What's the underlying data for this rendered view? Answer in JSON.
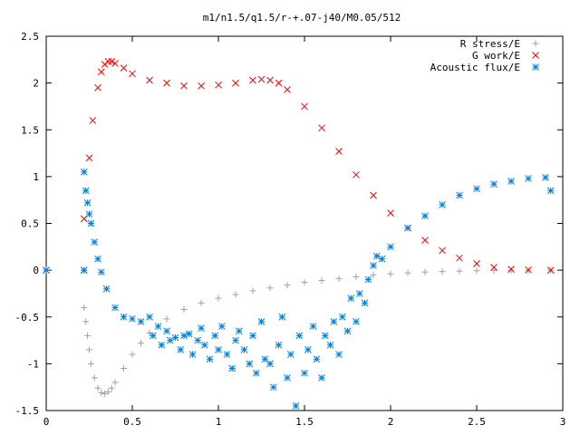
{
  "chart_data": {
    "type": "scatter",
    "title": "m1/n1.5/q1.5/r-+.07-j40/M0.05/512",
    "xlabel": "",
    "ylabel": "",
    "xlim": [
      0,
      3
    ],
    "ylim": [
      -1.5,
      2.5
    ],
    "x_ticks": [
      0,
      0.5,
      1,
      1.5,
      2,
      2.5,
      3
    ],
    "x_tick_labels": [
      "0",
      "0.5",
      "1",
      "1.5",
      "2",
      "2.5",
      "3"
    ],
    "y_ticks": [
      -1.5,
      -1,
      -0.5,
      0,
      0.5,
      1,
      1.5,
      2,
      2.5
    ],
    "y_tick_labels": [
      "-1.5",
      "-1",
      "-0.5",
      "0",
      "0.5",
      "1",
      "1.5",
      "2",
      "2.5"
    ],
    "grid": false,
    "legend_position": "top-right",
    "series": [
      {
        "name": "R stress/E",
        "marker": "+",
        "color": "#a0a0a0",
        "x": [
          0,
          0.22,
          0.22,
          0.23,
          0.24,
          0.25,
          0.26,
          0.28,
          0.3,
          0.32,
          0.34,
          0.36,
          0.38,
          0.4,
          0.45,
          0.5,
          0.55,
          0.6,
          0.7,
          0.8,
          0.9,
          1.0,
          1.1,
          1.2,
          1.3,
          1.4,
          1.5,
          1.6,
          1.7,
          1.8,
          1.9,
          2.0,
          2.1,
          2.2,
          2.3,
          2.4,
          2.5,
          2.6,
          2.7,
          2.8,
          2.93
        ],
        "y": [
          0,
          0,
          -0.4,
          -0.55,
          -0.7,
          -0.85,
          -1.0,
          -1.15,
          -1.26,
          -1.31,
          -1.32,
          -1.3,
          -1.26,
          -1.2,
          -1.05,
          -0.9,
          -0.78,
          -0.67,
          -0.52,
          -0.42,
          -0.35,
          -0.3,
          -0.26,
          -0.22,
          -0.19,
          -0.16,
          -0.13,
          -0.11,
          -0.09,
          -0.07,
          -0.05,
          -0.04,
          -0.03,
          -0.02,
          -0.015,
          -0.01,
          -0.005,
          -0.003,
          -0.002,
          -0.001,
          0
        ]
      },
      {
        "name": "G work/E",
        "marker": "x",
        "color": "#ff0000",
        "x": [
          0,
          0.22,
          0.22,
          0.25,
          0.27,
          0.3,
          0.32,
          0.34,
          0.36,
          0.38,
          0.4,
          0.45,
          0.5,
          0.6,
          0.7,
          0.8,
          0.9,
          1.0,
          1.1,
          1.2,
          1.25,
          1.3,
          1.35,
          1.4,
          1.5,
          1.6,
          1.7,
          1.8,
          1.9,
          2.0,
          2.1,
          2.2,
          2.3,
          2.4,
          2.5,
          2.6,
          2.7,
          2.8,
          2.93
        ],
        "y": [
          0,
          0,
          0.55,
          1.2,
          1.6,
          1.95,
          2.12,
          2.2,
          2.23,
          2.23,
          2.21,
          2.16,
          2.1,
          2.03,
          2.0,
          1.97,
          1.97,
          1.98,
          2.0,
          2.03,
          2.04,
          2.03,
          2.0,
          1.93,
          1.75,
          1.52,
          1.27,
          1.02,
          0.8,
          0.61,
          0.45,
          0.32,
          0.21,
          0.13,
          0.07,
          0.03,
          0.01,
          0.003,
          0
        ]
      },
      {
        "name": "Acoustic flux/E",
        "marker": "*",
        "color": "#0080e0",
        "x": [
          0,
          0.22,
          0.22,
          0.23,
          0.24,
          0.25,
          0.26,
          0.28,
          0.3,
          0.32,
          0.35,
          0.4,
          0.45,
          0.5,
          0.55,
          0.6,
          0.62,
          0.65,
          0.67,
          0.7,
          0.72,
          0.75,
          0.78,
          0.8,
          0.83,
          0.85,
          0.88,
          0.9,
          0.92,
          0.95,
          0.98,
          1.0,
          1.02,
          1.05,
          1.08,
          1.1,
          1.12,
          1.15,
          1.18,
          1.2,
          1.22,
          1.25,
          1.27,
          1.3,
          1.32,
          1.35,
          1.37,
          1.4,
          1.42,
          1.45,
          1.47,
          1.5,
          1.52,
          1.55,
          1.57,
          1.6,
          1.62,
          1.65,
          1.67,
          1.7,
          1.72,
          1.75,
          1.77,
          1.8,
          1.82,
          1.85,
          1.87,
          1.9,
          1.92,
          1.95,
          2.0,
          2.1,
          2.2,
          2.3,
          2.4,
          2.5,
          2.6,
          2.7,
          2.8,
          2.9,
          2.93
        ],
        "y": [
          0,
          0,
          1.05,
          0.85,
          0.72,
          0.6,
          0.5,
          0.3,
          0.12,
          -0.02,
          -0.2,
          -0.4,
          -0.5,
          -0.52,
          -0.55,
          -0.5,
          -0.7,
          -0.6,
          -0.8,
          -0.65,
          -0.75,
          -0.72,
          -0.85,
          -0.7,
          -0.68,
          -0.9,
          -0.75,
          -0.62,
          -0.8,
          -0.95,
          -0.7,
          -0.85,
          -0.6,
          -0.9,
          -1.05,
          -0.75,
          -0.65,
          -0.85,
          -1.0,
          -0.7,
          -1.1,
          -0.55,
          -0.95,
          -1.0,
          -1.25,
          -0.8,
          -0.5,
          -1.15,
          -0.9,
          -1.45,
          -0.7,
          -1.1,
          -0.85,
          -0.6,
          -0.95,
          -1.15,
          -0.7,
          -0.8,
          -0.55,
          -0.9,
          -0.5,
          -0.65,
          -0.3,
          -0.55,
          -0.25,
          -0.35,
          -0.1,
          0.05,
          0.15,
          0.12,
          0.25,
          0.45,
          0.58,
          0.7,
          0.8,
          0.87,
          0.92,
          0.95,
          0.98,
          0.99,
          0.85
        ]
      }
    ]
  }
}
